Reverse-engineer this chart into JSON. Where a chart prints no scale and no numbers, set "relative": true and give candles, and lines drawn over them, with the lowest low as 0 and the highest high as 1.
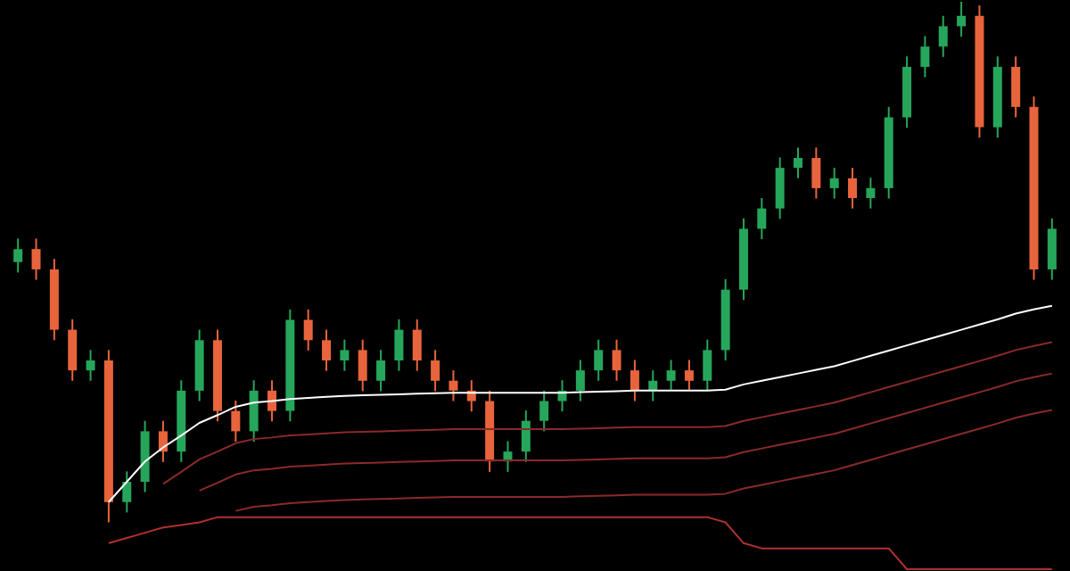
{
  "chart_data": {
    "type": "candlestick",
    "relative": true,
    "grid": false,
    "categories": [
      null,
      null,
      null,
      null,
      null,
      null,
      null,
      null,
      null,
      null,
      null,
      null,
      null,
      null,
      null,
      null,
      null,
      null,
      null,
      null,
      null,
      null,
      null,
      null,
      null,
      null,
      null,
      null,
      null,
      null,
      null,
      null,
      null,
      null,
      null,
      null,
      null,
      null,
      null,
      null,
      null,
      null,
      null,
      null,
      null,
      null,
      null,
      null,
      null,
      null,
      null,
      null,
      null,
      null,
      null,
      null,
      null,
      null
    ],
    "ohlc": [
      [
        0.5,
        0.545,
        0.48,
        0.525
      ],
      [
        0.525,
        0.545,
        0.466,
        0.486
      ],
      [
        0.486,
        0.506,
        0.35,
        0.37
      ],
      [
        0.37,
        0.39,
        0.272,
        0.292
      ],
      [
        0.292,
        0.331,
        0.272,
        0.311
      ],
      [
        0.311,
        0.331,
        0,
        0.039
      ],
      [
        0.039,
        0.098,
        0.019,
        0.078
      ],
      [
        0.078,
        0.195,
        0.058,
        0.175
      ],
      [
        0.175,
        0.195,
        0.116,
        0.136
      ],
      [
        0.136,
        0.273,
        0.116,
        0.253
      ],
      [
        0.253,
        0.37,
        0.233,
        0.35
      ],
      [
        0.35,
        0.37,
        0.194,
        0.214
      ],
      [
        0.214,
        0.234,
        0.155,
        0.175
      ],
      [
        0.175,
        0.273,
        0.155,
        0.253
      ],
      [
        0.253,
        0.273,
        0.194,
        0.214
      ],
      [
        0.214,
        0.409,
        0.194,
        0.389
      ],
      [
        0.389,
        0.409,
        0.33,
        0.35
      ],
      [
        0.35,
        0.37,
        0.291,
        0.311
      ],
      [
        0.311,
        0.351,
        0.291,
        0.331
      ],
      [
        0.331,
        0.351,
        0.252,
        0.272
      ],
      [
        0.272,
        0.331,
        0.252,
        0.311
      ],
      [
        0.311,
        0.39,
        0.291,
        0.37
      ],
      [
        0.37,
        0.39,
        0.291,
        0.311
      ],
      [
        0.311,
        0.331,
        0.252,
        0.272
      ],
      [
        0.272,
        0.292,
        0.233,
        0.253
      ],
      [
        0.253,
        0.273,
        0.213,
        0.233
      ],
      [
        0.233,
        0.253,
        0.097,
        0.117
      ],
      [
        0.117,
        0.156,
        0.097,
        0.136
      ],
      [
        0.136,
        0.215,
        0.116,
        0.195
      ],
      [
        0.195,
        0.253,
        0.175,
        0.233
      ],
      [
        0.233,
        0.273,
        0.213,
        0.253
      ],
      [
        0.253,
        0.312,
        0.233,
        0.292
      ],
      [
        0.292,
        0.351,
        0.272,
        0.331
      ],
      [
        0.331,
        0.351,
        0.272,
        0.292
      ],
      [
        0.292,
        0.312,
        0.233,
        0.253
      ],
      [
        0.253,
        0.292,
        0.233,
        0.272
      ],
      [
        0.272,
        0.312,
        0.252,
        0.292
      ],
      [
        0.292,
        0.312,
        0.252,
        0.272
      ],
      [
        0.272,
        0.351,
        0.252,
        0.331
      ],
      [
        0.331,
        0.467,
        0.311,
        0.447
      ],
      [
        0.447,
        0.584,
        0.427,
        0.564
      ],
      [
        0.564,
        0.623,
        0.544,
        0.603
      ],
      [
        0.603,
        0.701,
        0.583,
        0.681
      ],
      [
        0.681,
        0.72,
        0.661,
        0.7
      ],
      [
        0.7,
        0.72,
        0.622,
        0.642
      ],
      [
        0.642,
        0.681,
        0.622,
        0.661
      ],
      [
        0.661,
        0.681,
        0.603,
        0.623
      ],
      [
        0.623,
        0.662,
        0.603,
        0.642
      ],
      [
        0.642,
        0.798,
        0.622,
        0.778
      ],
      [
        0.778,
        0.895,
        0.758,
        0.875
      ],
      [
        0.875,
        0.934,
        0.855,
        0.914
      ],
      [
        0.914,
        0.973,
        0.894,
        0.953
      ],
      [
        0.953,
        1.0,
        0.933,
        0.973
      ],
      [
        0.973,
        0.993,
        0.739,
        0.759
      ],
      [
        0.759,
        0.895,
        0.739,
        0.875
      ],
      [
        0.875,
        0.895,
        0.778,
        0.798
      ],
      [
        0.798,
        0.818,
        0.466,
        0.486
      ],
      [
        0.486,
        0.584,
        0.466,
        0.564
      ]
    ],
    "colors": [
      "#26a65b",
      "#e8643c",
      "#e8643c",
      "#e8643c",
      "#26a65b",
      "#e8643c",
      "#26a65b",
      "#26a65b",
      "#e8643c",
      "#26a65b",
      "#26a65b",
      "#e8643c",
      "#e8643c",
      "#26a65b",
      "#e8643c",
      "#26a65b",
      "#e8643c",
      "#e8643c",
      "#26a65b",
      "#e8643c",
      "#26a65b",
      "#26a65b",
      "#e8643c",
      "#e8643c",
      "#e8643c",
      "#e8643c",
      "#e8643c",
      "#26a65b",
      "#26a65b",
      "#26a65b",
      "#26a65b",
      "#26a65b",
      "#26a65b",
      "#e8643c",
      "#e8643c",
      "#26a65b",
      "#26a65b",
      "#e8643c",
      "#26a65b",
      "#26a65b",
      "#26a65b",
      "#26a65b",
      "#26a65b",
      "#26a65b",
      "#e8643c",
      "#26a65b",
      "#e8643c",
      "#26a65b",
      "#26a65b",
      "#26a65b",
      "#26a65b",
      "#26a65b",
      "#26a65b",
      "#e8643c",
      "#26a65b",
      "#e8643c",
      "#e8643c",
      "#26a65b"
    ],
    "series": [
      {
        "type": "line",
        "color": "#ffffff",
        "values": [
          null,
          null,
          null,
          null,
          null,
          0.039,
          0.078,
          0.117,
          0.144,
          0.167,
          0.191,
          0.206,
          0.222,
          0.23,
          0.233,
          0.237,
          0.239,
          0.241,
          0.243,
          0.244,
          0.245,
          0.246,
          0.247,
          0.248,
          0.249,
          0.249,
          0.249,
          0.249,
          0.249,
          0.249,
          0.249,
          0.25,
          0.251,
          0.252,
          0.253,
          0.253,
          0.253,
          0.253,
          0.253,
          0.255,
          0.265,
          0.272,
          0.279,
          0.286,
          0.293,
          0.3,
          0.31,
          0.32,
          0.33,
          0.34,
          0.35,
          0.36,
          0.37,
          0.38,
          0.39,
          0.401,
          0.409,
          0.416
        ]
      },
      {
        "type": "line",
        "color": "#8b2a2a",
        "values": [
          null,
          null,
          null,
          null,
          null,
          null,
          null,
          null,
          0.074,
          0.097,
          0.121,
          0.136,
          0.152,
          0.16,
          0.163,
          0.167,
          0.169,
          0.171,
          0.173,
          0.174,
          0.175,
          0.176,
          0.177,
          0.178,
          0.179,
          0.179,
          0.179,
          0.179,
          0.179,
          0.179,
          0.179,
          0.18,
          0.181,
          0.182,
          0.183,
          0.183,
          0.183,
          0.183,
          0.183,
          0.185,
          0.195,
          0.202,
          0.209,
          0.216,
          0.223,
          0.23,
          0.24,
          0.25,
          0.26,
          0.27,
          0.28,
          0.29,
          0.3,
          0.31,
          0.32,
          0.331,
          0.339,
          0.346
        ]
      },
      {
        "type": "line",
        "color": "#8b2a2a",
        "values": [
          null,
          null,
          null,
          null,
          null,
          null,
          null,
          null,
          null,
          null,
          0.061,
          0.076,
          0.092,
          0.1,
          0.103,
          0.107,
          0.109,
          0.111,
          0.113,
          0.114,
          0.115,
          0.116,
          0.117,
          0.118,
          0.119,
          0.119,
          0.119,
          0.119,
          0.119,
          0.119,
          0.119,
          0.12,
          0.121,
          0.122,
          0.123,
          0.123,
          0.123,
          0.123,
          0.123,
          0.125,
          0.135,
          0.142,
          0.149,
          0.156,
          0.163,
          0.17,
          0.18,
          0.19,
          0.2,
          0.21,
          0.22,
          0.23,
          0.24,
          0.25,
          0.26,
          0.271,
          0.279,
          0.286
        ]
      },
      {
        "type": "line",
        "color": "#8b2a2a",
        "values": [
          null,
          null,
          null,
          null,
          null,
          null,
          null,
          null,
          null,
          null,
          null,
          null,
          0.022,
          0.03,
          0.033,
          0.037,
          0.039,
          0.041,
          0.043,
          0.044,
          0.045,
          0.046,
          0.047,
          0.048,
          0.049,
          0.049,
          0.049,
          0.049,
          0.049,
          0.049,
          0.049,
          0.05,
          0.051,
          0.052,
          0.053,
          0.053,
          0.053,
          0.053,
          0.053,
          0.055,
          0.065,
          0.072,
          0.079,
          0.086,
          0.093,
          0.1,
          0.11,
          0.12,
          0.13,
          0.14,
          0.15,
          0.16,
          0.17,
          0.18,
          0.19,
          0.201,
          0.209,
          0.216
        ]
      },
      {
        "type": "line",
        "color": "#b03030",
        "values": [
          null,
          null,
          null,
          null,
          null,
          -0.04,
          -0.03,
          -0.02,
          -0.01,
          -0.005,
          0.0,
          0.01,
          0.01,
          0.01,
          0.01,
          0.01,
          0.01,
          0.01,
          0.01,
          0.01,
          0.01,
          0.01,
          0.01,
          0.01,
          0.01,
          0.01,
          0.01,
          0.01,
          0.01,
          0.01,
          0.01,
          0.01,
          0.01,
          0.01,
          0.01,
          0.01,
          0.01,
          0.01,
          0.01,
          0.0,
          -0.04,
          -0.05,
          -0.05,
          -0.05,
          -0.05,
          -0.05,
          -0.05,
          -0.05,
          -0.05,
          -0.09,
          -0.09,
          -0.09,
          -0.09,
          -0.09,
          -0.09,
          -0.09,
          -0.09,
          -0.09
        ]
      }
    ]
  }
}
